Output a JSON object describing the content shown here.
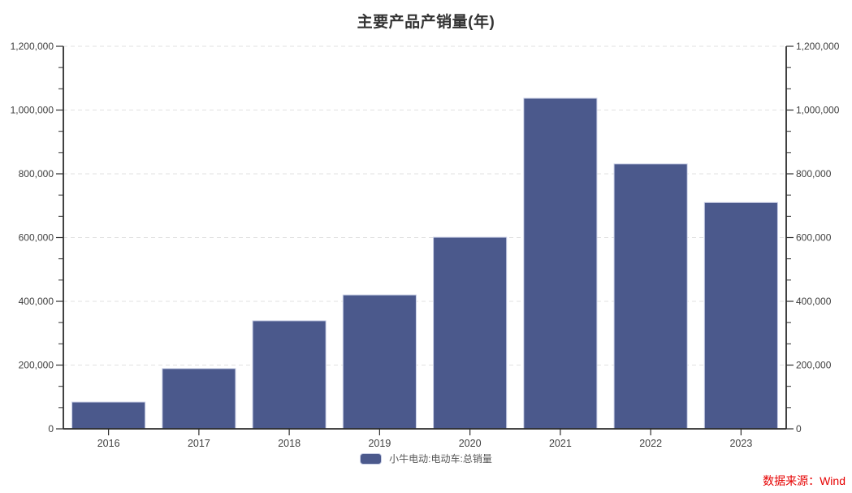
{
  "title": "主要产品产销量(年)",
  "source_note": "数据来源：Wind",
  "legend": {
    "label": "小牛电动:电动车:总销量"
  },
  "colors": {
    "bar": "#4b598c",
    "bar_border": "#c9cfe6",
    "axis": "#2d2d2d",
    "grid": "#e1e1e1",
    "text": "#404040",
    "title": "#333333",
    "source": "#e60000"
  },
  "chart_data": {
    "type": "bar",
    "title": "主要产品产销量(年)",
    "categories": [
      "2016",
      "2017",
      "2018",
      "2019",
      "2020",
      "2021",
      "2022",
      "2023"
    ],
    "series": [
      {
        "name": "小牛电动:电动车:总销量",
        "values": [
          84000,
          189000,
          339000,
          420000,
          601000,
          1037000,
          831000,
          710000
        ]
      }
    ],
    "xlabel": "",
    "ylabel": "",
    "ylim": [
      0,
      1200000
    ],
    "y_major_step": 200000,
    "y_minor_per_major": 2,
    "y_tick_labels": [
      "0",
      "200,000",
      "400,000",
      "600,000",
      "800,000",
      "1,000,000",
      "1,200,000"
    ],
    "grid": "horizontal-dashed-major",
    "dual_y_axis": true,
    "legend_position": "bottom-center"
  }
}
